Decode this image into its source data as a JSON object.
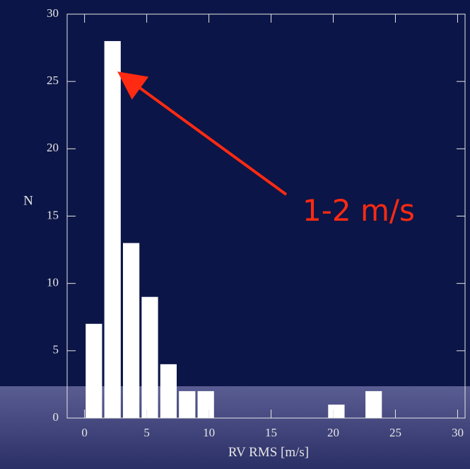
{
  "chart_data": {
    "type": "histogram",
    "xlabel": "RV RMS [m/s]",
    "ylabel": "N",
    "bins": [
      0,
      1.5,
      3,
      4.5,
      6,
      7.5,
      9,
      10.5,
      12,
      13.5,
      15,
      16.5,
      18,
      19.5,
      21,
      22.5,
      24
    ],
    "values": [
      7,
      28,
      13,
      9,
      4,
      2,
      2,
      0,
      0,
      0,
      0,
      0,
      0,
      1,
      0,
      2
    ],
    "color": "#ffffff",
    "xlim": [
      -1.4,
      30.6
    ],
    "ylim": [
      0,
      30
    ],
    "xticks": [
      0,
      5,
      10,
      15,
      20,
      25,
      30
    ],
    "yticks": [
      0,
      5,
      10,
      15,
      20,
      25,
      30
    ],
    "annotation": "1-2 m/s"
  }
}
